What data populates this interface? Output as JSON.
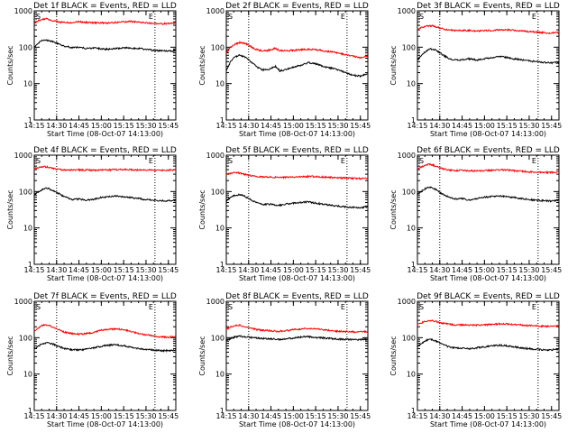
{
  "layout": {
    "rows": 3,
    "cols": 3
  },
  "axis": {
    "ylabel": "Counts/sec",
    "xlabel": "Start Time (08-Oct-07 14:13:00)",
    "yticks": [
      {
        "value": 1,
        "label": "1"
      },
      {
        "value": 10,
        "label": "10"
      },
      {
        "value": 100,
        "label": "100"
      },
      {
        "value": 1000,
        "label": "1000"
      }
    ],
    "xticks": [
      {
        "minute": 0,
        "label": "14:15"
      },
      {
        "minute": 15,
        "label": "14:30"
      },
      {
        "minute": 30,
        "label": "14:45"
      },
      {
        "minute": 45,
        "label": "15:00"
      },
      {
        "minute": 60,
        "label": "15:15"
      },
      {
        "minute": 75,
        "label": "15:30"
      },
      {
        "minute": 90,
        "label": "15:45"
      }
    ],
    "xrange_minutes": [
      0,
      95
    ],
    "ylim": [
      1,
      1000
    ],
    "yscale": "log"
  },
  "markers": {
    "start_label": "S",
    "end_label": "E"
  },
  "colors": {
    "events": "#000000",
    "lld": "#ff0000",
    "axes": "#000000",
    "background": "#ffffff"
  },
  "chart_data": [
    {
      "type": "line",
      "title": "Det 1f BLACK = Events, RED = LLD",
      "start_minute": 15,
      "end_minute": 81,
      "x": [
        0,
        2,
        5,
        8,
        11,
        14,
        17,
        20,
        25,
        30,
        35,
        40,
        45,
        50,
        55,
        60,
        65,
        70,
        75,
        80,
        85,
        90,
        94
      ],
      "series": [
        {
          "name": "Events",
          "color": "#000000",
          "values": [
            95,
            125,
            150,
            155,
            148,
            135,
            118,
            108,
            98,
            100,
            92,
            95,
            90,
            88,
            92,
            98,
            96,
            92,
            88,
            82,
            80,
            78,
            80
          ]
        },
        {
          "name": "LLD",
          "color": "#ff0000",
          "values": [
            430,
            520,
            580,
            600,
            560,
            520,
            495,
            480,
            470,
            500,
            480,
            470,
            470,
            465,
            480,
            500,
            510,
            490,
            470,
            450,
            440,
            445,
            460
          ]
        }
      ]
    },
    {
      "type": "line",
      "title": "Det 2f BLACK = Events, RED = LLD",
      "start_minute": 15,
      "end_minute": 81,
      "x": [
        0,
        3,
        6,
        9,
        12,
        15,
        18,
        21,
        24,
        27,
        30,
        33,
        36,
        40,
        45,
        50,
        55,
        60,
        65,
        70,
        75,
        80,
        85,
        90,
        94
      ],
      "series": [
        {
          "name": "Events",
          "color": "#000000",
          "values": [
            22,
            40,
            55,
            60,
            55,
            45,
            35,
            28,
            24,
            24,
            26,
            30,
            22,
            25,
            28,
            32,
            38,
            35,
            30,
            27,
            24,
            20,
            17,
            16,
            18
          ]
        },
        {
          "name": "LLD",
          "color": "#ff0000",
          "values": [
            70,
            100,
            120,
            135,
            130,
            115,
            95,
            85,
            80,
            80,
            85,
            95,
            80,
            80,
            82,
            85,
            88,
            85,
            80,
            75,
            70,
            63,
            56,
            52,
            56
          ]
        }
      ]
    },
    {
      "type": "line",
      "title": "Det 3f BLACK = Events, RED = LLD",
      "start_minute": 15,
      "end_minute": 81,
      "x": [
        0,
        3,
        6,
        9,
        12,
        15,
        18,
        21,
        25,
        30,
        35,
        40,
        45,
        50,
        55,
        60,
        65,
        70,
        75,
        80,
        85,
        90,
        94
      ],
      "series": [
        {
          "name": "Events",
          "color": "#000000",
          "values": [
            45,
            60,
            80,
            90,
            85,
            70,
            58,
            50,
            45,
            45,
            48,
            44,
            48,
            52,
            56,
            52,
            48,
            45,
            42,
            40,
            38,
            37,
            38
          ]
        },
        {
          "name": "LLD",
          "color": "#ff0000",
          "values": [
            310,
            350,
            380,
            390,
            370,
            340,
            310,
            300,
            290,
            290,
            285,
            280,
            285,
            290,
            300,
            300,
            290,
            280,
            270,
            260,
            250,
            245,
            250
          ]
        }
      ]
    },
    {
      "type": "line",
      "title": "Det 4f BLACK = Events, RED = LLD",
      "start_minute": 15,
      "end_minute": 81,
      "x": [
        0,
        3,
        6,
        9,
        12,
        15,
        18,
        21,
        25,
        30,
        35,
        40,
        45,
        50,
        55,
        60,
        65,
        70,
        75,
        80,
        85,
        90,
        94
      ],
      "series": [
        {
          "name": "Events",
          "color": "#000000",
          "values": [
            80,
            100,
            118,
            122,
            110,
            95,
            80,
            70,
            60,
            62,
            58,
            62,
            68,
            72,
            75,
            72,
            68,
            64,
            60,
            58,
            56,
            56,
            58
          ]
        },
        {
          "name": "LLD",
          "color": "#ff0000",
          "values": [
            420,
            460,
            480,
            470,
            440,
            410,
            400,
            395,
            390,
            395,
            390,
            385,
            390,
            395,
            400,
            405,
            400,
            395,
            390,
            385,
            385,
            390,
            395
          ]
        }
      ]
    },
    {
      "type": "line",
      "title": "Det 5f BLACK = Events, RED = LLD",
      "start_minute": 15,
      "end_minute": 81,
      "x": [
        0,
        3,
        6,
        9,
        12,
        15,
        18,
        21,
        25,
        30,
        35,
        40,
        45,
        50,
        55,
        60,
        65,
        70,
        75,
        80,
        85,
        90,
        94
      ],
      "series": [
        {
          "name": "Events",
          "color": "#000000",
          "values": [
            55,
            70,
            80,
            82,
            75,
            65,
            55,
            48,
            44,
            45,
            42,
            45,
            48,
            50,
            52,
            48,
            45,
            42,
            40,
            38,
            37,
            36,
            38
          ]
        },
        {
          "name": "LLD",
          "color": "#ff0000",
          "values": [
            290,
            320,
            330,
            320,
            300,
            280,
            265,
            255,
            250,
            250,
            248,
            245,
            248,
            255,
            260,
            258,
            252,
            245,
            240,
            235,
            230,
            228,
            232
          ]
        }
      ]
    },
    {
      "type": "line",
      "title": "Det 6f BLACK = Events, RED = LLD",
      "start_minute": 15,
      "end_minute": 81,
      "x": [
        0,
        3,
        6,
        9,
        12,
        15,
        18,
        21,
        25,
        30,
        35,
        40,
        45,
        50,
        55,
        60,
        65,
        70,
        75,
        80,
        85,
        90,
        94
      ],
      "series": [
        {
          "name": "Events",
          "color": "#000000",
          "values": [
            80,
            105,
            125,
            130,
            115,
            95,
            80,
            70,
            62,
            65,
            58,
            64,
            70,
            74,
            76,
            72,
            68,
            64,
            60,
            58,
            56,
            55,
            58
          ]
        },
        {
          "name": "LLD",
          "color": "#ff0000",
          "values": [
            420,
            480,
            540,
            560,
            500,
            450,
            410,
            390,
            380,
            380,
            370,
            365,
            375,
            385,
            395,
            390,
            375,
            360,
            350,
            340,
            335,
            335,
            345
          ]
        }
      ]
    },
    {
      "type": "line",
      "title": "Det 7f BLACK = Events, RED = LLD",
      "start_minute": 15,
      "end_minute": 81,
      "x": [
        0,
        3,
        6,
        9,
        12,
        15,
        18,
        21,
        25,
        30,
        35,
        40,
        45,
        50,
        55,
        60,
        65,
        70,
        75,
        80,
        85,
        90,
        94
      ],
      "series": [
        {
          "name": "Events",
          "color": "#000000",
          "values": [
            50,
            60,
            70,
            72,
            68,
            60,
            54,
            50,
            47,
            46,
            48,
            52,
            58,
            62,
            64,
            60,
            54,
            50,
            48,
            46,
            44,
            44,
            46
          ]
        },
        {
          "name": "LLD",
          "color": "#ff0000",
          "values": [
            150,
            190,
            220,
            225,
            200,
            175,
            155,
            140,
            130,
            125,
            130,
            140,
            160,
            170,
            175,
            165,
            145,
            130,
            120,
            110,
            105,
            102,
            108
          ]
        }
      ]
    },
    {
      "type": "line",
      "title": "Det 8f BLACK = Events, RED = LLD",
      "start_minute": 15,
      "end_minute": 81,
      "x": [
        0,
        3,
        6,
        9,
        12,
        15,
        18,
        21,
        25,
        30,
        35,
        40,
        45,
        50,
        55,
        60,
        65,
        70,
        75,
        80,
        85,
        90,
        94
      ],
      "series": [
        {
          "name": "Events",
          "color": "#000000",
          "values": [
            85,
            95,
            105,
            110,
            108,
            104,
            100,
            98,
            95,
            92,
            90,
            92,
            98,
            104,
            106,
            102,
            98,
            95,
            92,
            90,
            88,
            88,
            90
          ]
        },
        {
          "name": "LLD",
          "color": "#ff0000",
          "values": [
            170,
            200,
            215,
            220,
            205,
            190,
            175,
            165,
            160,
            155,
            150,
            155,
            165,
            175,
            180,
            175,
            165,
            155,
            150,
            148,
            145,
            145,
            148
          ]
        }
      ]
    },
    {
      "type": "line",
      "title": "Det 9f BLACK = Events, RED = LLD",
      "start_minute": 15,
      "end_minute": 81,
      "x": [
        0,
        3,
        6,
        9,
        12,
        15,
        18,
        21,
        25,
        30,
        35,
        40,
        45,
        50,
        55,
        60,
        65,
        70,
        75,
        80,
        85,
        90,
        94
      ],
      "series": [
        {
          "name": "Events",
          "color": "#000000",
          "values": [
            55,
            70,
            85,
            90,
            82,
            72,
            62,
            56,
            52,
            52,
            50,
            53,
            56,
            60,
            62,
            60,
            56,
            52,
            50,
            48,
            46,
            46,
            48
          ]
        },
        {
          "name": "LLD",
          "color": "#ff0000",
          "values": [
            230,
            260,
            290,
            300,
            280,
            260,
            245,
            235,
            225,
            225,
            220,
            220,
            225,
            232,
            240,
            238,
            230,
            222,
            215,
            210,
            205,
            205,
            210
          ]
        }
      ]
    }
  ]
}
